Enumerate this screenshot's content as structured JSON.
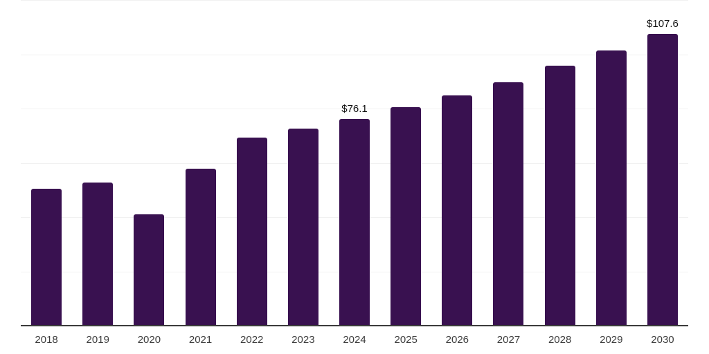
{
  "chart_data": {
    "type": "bar",
    "title": "",
    "xlabel": "",
    "ylabel": "",
    "categories": [
      "2018",
      "2019",
      "2020",
      "2021",
      "2022",
      "2023",
      "2024",
      "2025",
      "2026",
      "2027",
      "2028",
      "2029",
      "2030"
    ],
    "values": [
      50.4,
      52.7,
      41.0,
      57.9,
      69.3,
      72.6,
      76.1,
      80.6,
      84.8,
      89.8,
      95.8,
      101.4,
      107.6
    ],
    "data_labels": [
      null,
      null,
      null,
      null,
      null,
      null,
      "$76.1",
      null,
      null,
      null,
      null,
      null,
      "$107.6"
    ],
    "ylim": [
      0,
      120
    ],
    "grid_step": 20,
    "grid": true,
    "legend": false,
    "y_tick_labels_visible": false,
    "colors": {
      "bar": "#391150",
      "gridline": "#f1f1f1",
      "axis_line": "#3b3b3b",
      "tick_label": "#3c3c3c",
      "data_label": "#0f0f0f",
      "background": "#ffffff"
    }
  }
}
